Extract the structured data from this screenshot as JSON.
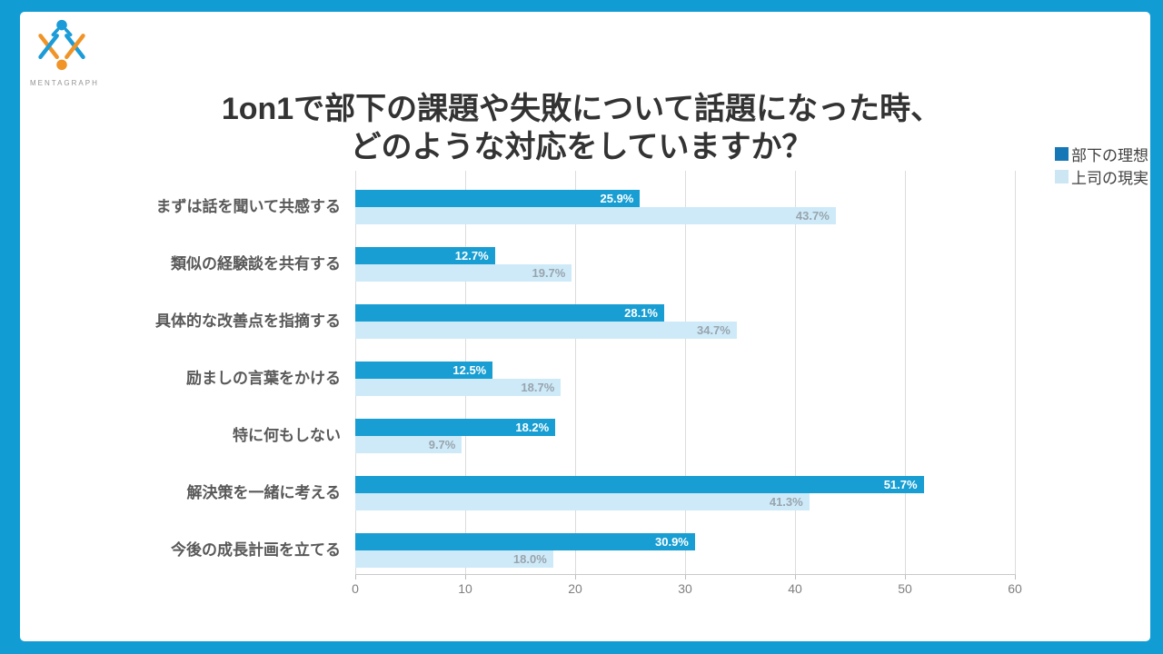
{
  "logo": {
    "brand": "MENTAGRAPH"
  },
  "title": {
    "line1": "1on1で部下の課題や失敗について話題になった時、",
    "line2": "どのような対応をしていますか？"
  },
  "legend": {
    "items": [
      {
        "label": "部下の理想",
        "color": "#1577B5"
      },
      {
        "label": "上司の現実",
        "color": "#CDE6F3"
      }
    ]
  },
  "colors": {
    "frame": "#129CD4",
    "grid": "#DCDCDC",
    "axis": "#C9C9C9",
    "title_text": "#333333",
    "category_text": "#595959",
    "tick_text": "#7F7F7F",
    "value_label_on_dark": "#FFFFFF",
    "value_label_on_light": "#98A4AC",
    "logo_blue": "#1B9CD8",
    "logo_orange": "#F09428"
  },
  "chart_data": {
    "type": "bar",
    "orientation": "horizontal",
    "title": "1on1で部下の課題や失敗について話題になった時、どのような対応をしていますか？",
    "categories": [
      "まずは話を聞いて共感する",
      "類似の経験談を共有する",
      "具体的な改善点を指摘する",
      "励ましの言葉をかける",
      "特に何もしない",
      "解決策を一緒に考える",
      "今後の成長計画を立てる"
    ],
    "series": [
      {
        "name": "部下の理想",
        "color": "#189ED2",
        "values": [
          25.9,
          12.7,
          28.1,
          12.5,
          18.2,
          51.7,
          30.9
        ],
        "labels": [
          "25.9%",
          "12.7%",
          "28.1%",
          "12.5%",
          "18.2%",
          "51.7%",
          "30.9%"
        ]
      },
      {
        "name": "上司の現実",
        "color": "#CEEAF9",
        "values": [
          43.7,
          19.7,
          34.7,
          18.7,
          9.7,
          41.3,
          18.0
        ],
        "labels": [
          "43.7%",
          "19.7%",
          "34.7%",
          "18.7%",
          "9.7%",
          "41.3%",
          "18.0%"
        ]
      }
    ],
    "x_ticks": [
      0,
      10,
      20,
      30,
      40,
      50,
      60
    ],
    "x_tick_labels": [
      "0",
      "10",
      "20",
      "30",
      "40",
      "50",
      "60"
    ],
    "xlim": [
      0,
      60
    ],
    "xlabel": "",
    "ylabel": "",
    "grid": true,
    "legend_position": "top-right",
    "value_labels": "inside-end"
  }
}
